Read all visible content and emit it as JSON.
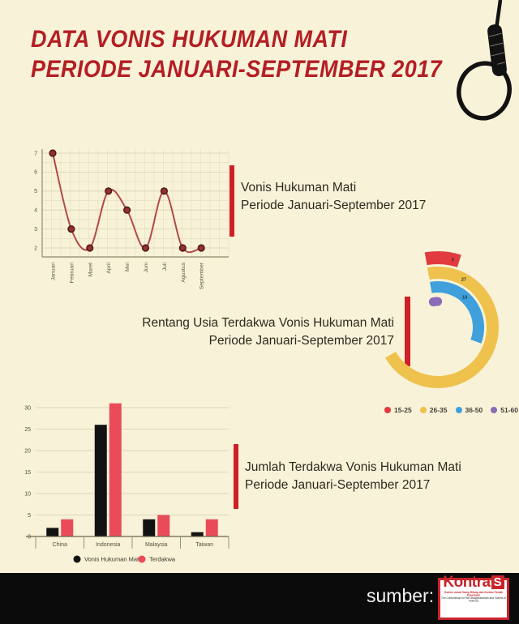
{
  "page": {
    "background": "#f8f2d8",
    "accent_red": "#cf2026",
    "title_red": "#b41e24"
  },
  "header": {
    "title_line1": "DATA VONIS HUKUMAN MATI",
    "title_line2": "PERIODE JANUARI-SEPTEMBER 2017"
  },
  "sections": {
    "line": {
      "caption_line1": "Vonis Hukuman Mati",
      "caption_line2": "Periode Januari-September 2017"
    },
    "radial": {
      "caption_line1": "Rentang Usia Terdakwa Vonis Hukuman Mati",
      "caption_line2": "Periode Januari-September 2017"
    },
    "bar": {
      "caption_line1": "Jumlah Terdakwa Vonis Hukuman Mati",
      "caption_line2": "Periode Januari-September 2017"
    }
  },
  "footer": {
    "source_label": "sumber:",
    "logo_main": "Kontra",
    "logo_s": "S",
    "logo_tagline1": "Komisi untuk Orang Hilang dan Korban Tindak Kekerasan",
    "logo_tagline2": "The Commission for the Disappearances and Victims of Violence"
  },
  "chart_data": [
    {
      "type": "line",
      "title": "Vonis Hukuman Mati Periode Januari-September 2017",
      "categories": [
        "Januari",
        "Februari",
        "Maret",
        "April",
        "Mei",
        "Juni",
        "Juli",
        "Agustus",
        "September"
      ],
      "values": [
        7,
        3,
        2,
        5,
        4,
        2,
        5,
        2,
        2
      ],
      "yticks": [
        2,
        3,
        4,
        5,
        6,
        7
      ],
      "ylim": [
        1.5,
        7.3
      ],
      "grid": true,
      "legend_position": "none",
      "line_color": "#b14a4a",
      "point_color": "#953134",
      "point_stroke": "#511a1a"
    },
    {
      "type": "pie",
      "variant": "radial-bar",
      "title": "Rentang Usia Terdakwa Vonis Hukuman Mati Periode Januari-September 2017",
      "categories": [
        "15-25",
        "26-35",
        "36-50",
        "51-60"
      ],
      "values": [
        3,
        27,
        13,
        1
      ],
      "colors": [
        "#e23b3f",
        "#efc24d",
        "#3fa0dc",
        "#8a6cb8"
      ],
      "legend_position": "bottom",
      "start_angle_deg": -100,
      "degrees_per_unit": 9.26
    },
    {
      "type": "bar",
      "title": "Jumlah Terdakwa Vonis Hukuman Mati Periode Januari-September 2017",
      "categories": [
        "China",
        "Indonesia",
        "Malaysia",
        "Taiwan"
      ],
      "series": [
        {
          "name": "Vonis Hukuman Mati",
          "color": "#121212",
          "values": [
            2,
            26,
            4,
            1
          ]
        },
        {
          "name": "Terdakwa",
          "color": "#e94b59",
          "values": [
            4,
            31,
            5,
            4
          ]
        }
      ],
      "yticks": [
        0,
        5,
        10,
        15,
        20,
        25,
        30
      ],
      "ylim": [
        0,
        33
      ],
      "grid": true,
      "legend_position": "bottom"
    }
  ]
}
